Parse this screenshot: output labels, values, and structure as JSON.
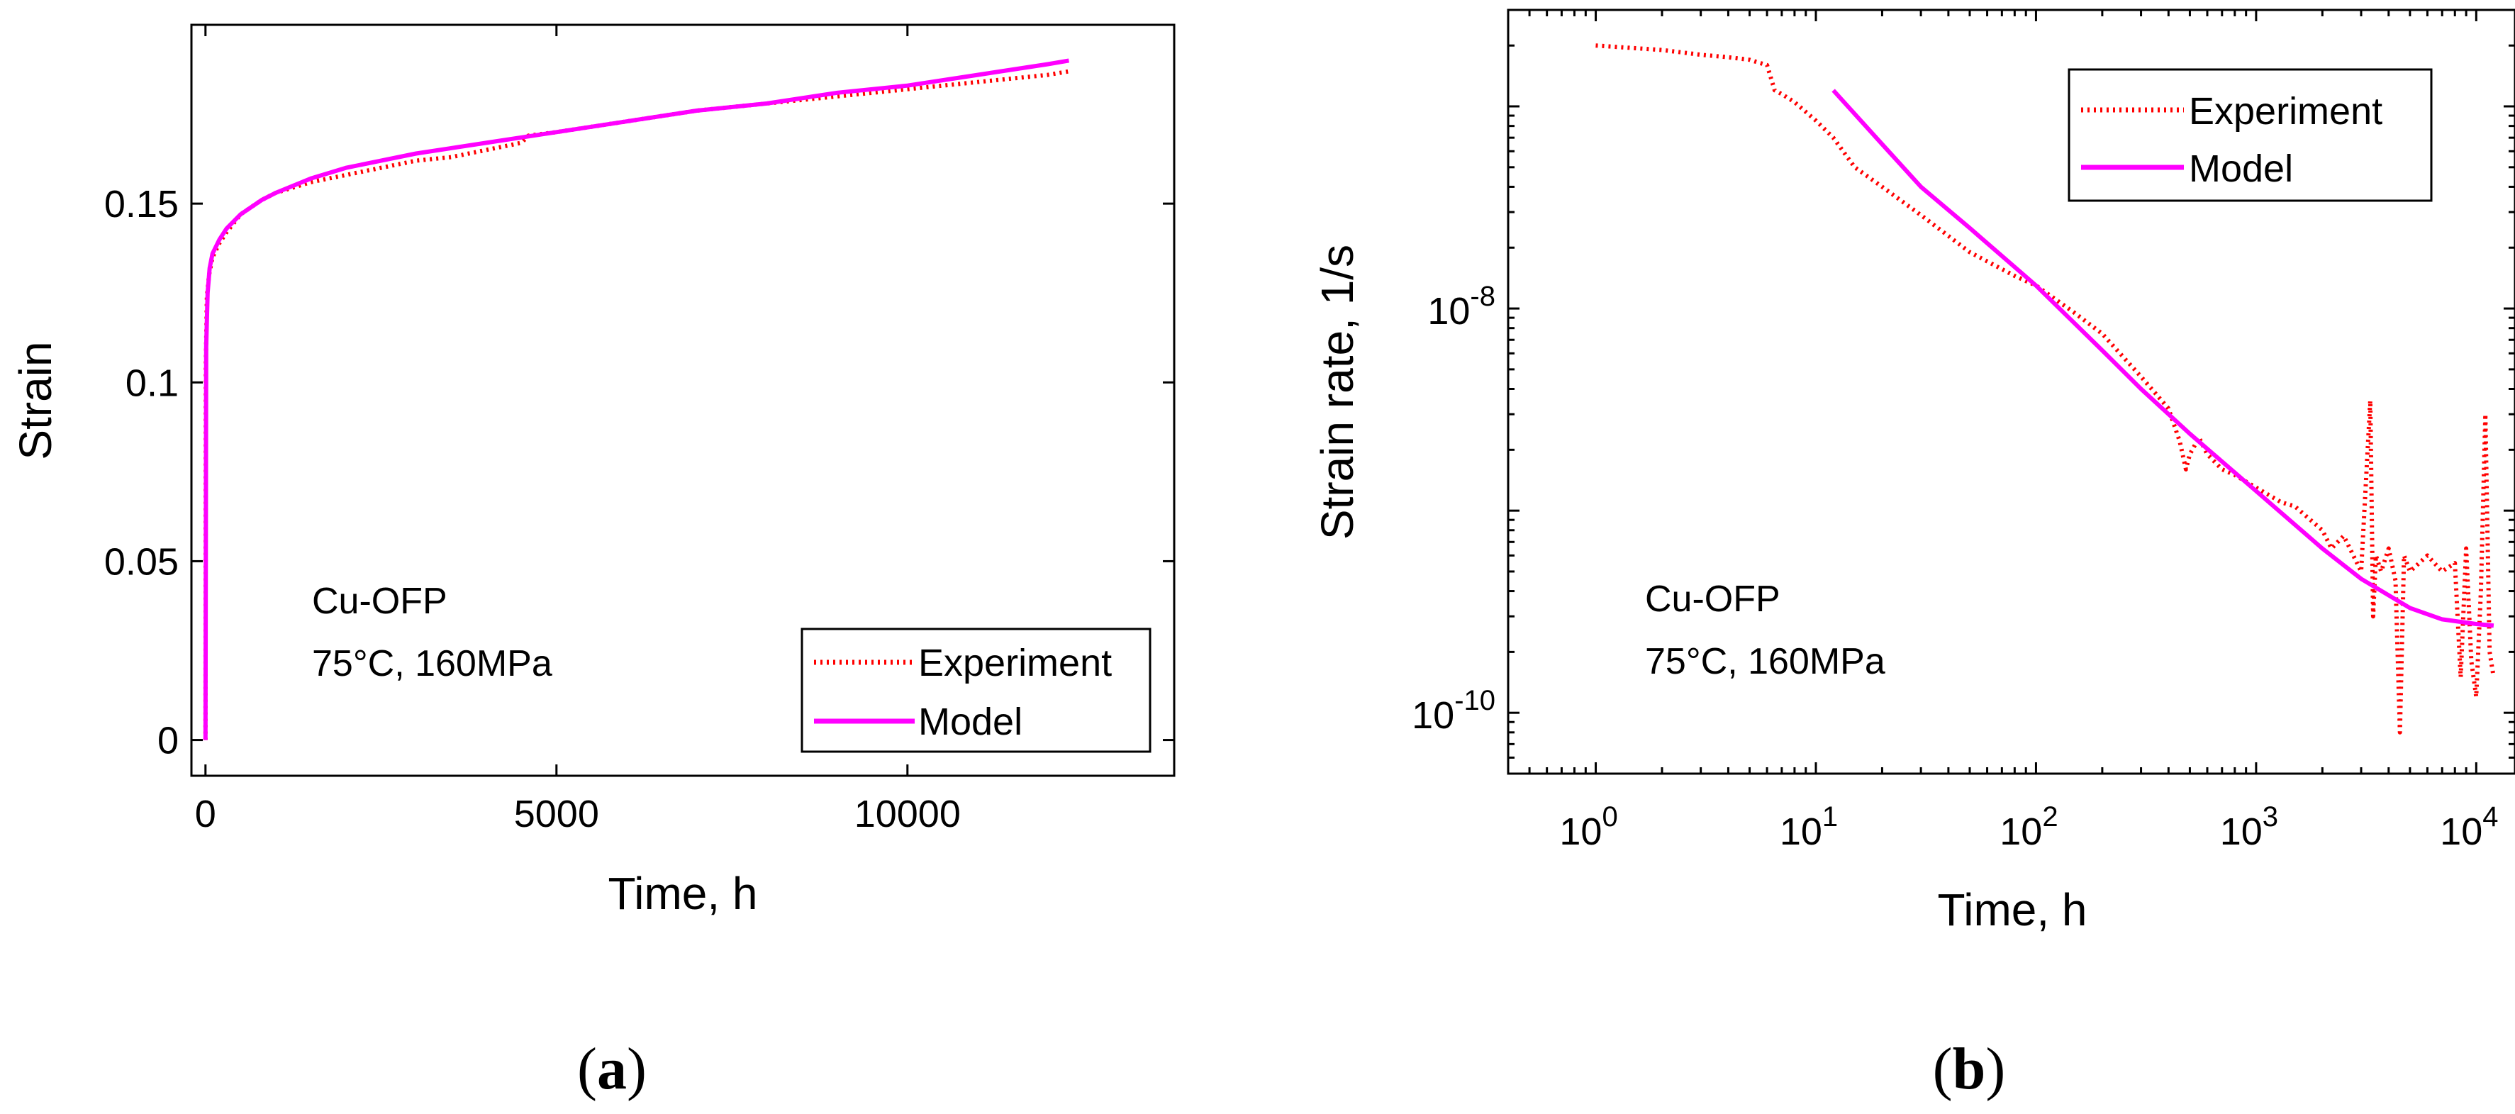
{
  "chart_data": [
    {
      "panel": "(a)",
      "type": "line",
      "xlabel": "Time, h",
      "ylabel": "Strain",
      "xlim": [
        -200,
        13800
      ],
      "ylim": [
        -0.01,
        0.2
      ],
      "xticks": [
        0,
        5000,
        10000
      ],
      "xtick_labels": [
        "0",
        "5000",
        "10000"
      ],
      "yticks": [
        0,
        0.05,
        0.1,
        0.15
      ],
      "ytick_labels": [
        "0",
        "0.05",
        "0.1",
        "0.15"
      ],
      "grid": false,
      "legend_position": "bottom-right",
      "annotations": [
        "Cu-OFP",
        "75°C, 160MPa"
      ],
      "series": [
        {
          "name": "Experiment",
          "color": "#ff0000",
          "style": "dotted",
          "x": [
            0,
            5,
            20,
            50,
            100,
            200,
            300,
            500,
            800,
            1000,
            1500,
            2000,
            2500,
            3000,
            3500,
            4000,
            4500,
            4600,
            5000,
            6000,
            7000,
            8000,
            9000,
            10000,
            11000,
            12000,
            12300
          ],
          "y": [
            0.0,
            0.105,
            0.124,
            0.13,
            0.135,
            0.139,
            0.142,
            0.147,
            0.151,
            0.153,
            0.156,
            0.158,
            0.16,
            0.162,
            0.163,
            0.165,
            0.167,
            0.169,
            0.17,
            0.173,
            0.176,
            0.178,
            0.18,
            0.182,
            0.184,
            0.186,
            0.187
          ]
        },
        {
          "name": "Model",
          "color": "#ff00ff",
          "style": "solid",
          "x": [
            0,
            10,
            30,
            60,
            100,
            200,
            300,
            500,
            800,
            1000,
            1500,
            2000,
            3000,
            4000,
            5000,
            6000,
            7000,
            8000,
            9000,
            10000,
            11000,
            12000,
            12300
          ],
          "y": [
            0.0,
            0.11,
            0.125,
            0.132,
            0.136,
            0.14,
            0.143,
            0.147,
            0.151,
            0.153,
            0.157,
            0.16,
            0.164,
            0.167,
            0.17,
            0.173,
            0.176,
            0.178,
            0.181,
            0.183,
            0.186,
            0.189,
            0.19
          ]
        }
      ]
    },
    {
      "panel": "(b)",
      "type": "line",
      "xlabel": "Time, h",
      "ylabel": "Strain rate, 1/s",
      "xscale": "log",
      "yscale": "log",
      "xlim": [
        0.4,
        15000
      ],
      "ylim": [
        5e-11,
        3e-07
      ],
      "xticks": [
        1,
        10,
        100,
        1000,
        10000
      ],
      "xtick_bases": [
        "10",
        "10",
        "10",
        "10",
        "10"
      ],
      "xtick_exps": [
        "0",
        "1",
        "2",
        "3",
        "4"
      ],
      "yticks": [
        1e-08,
        1e-10
      ],
      "ytick_bases": [
        "10",
        "10"
      ],
      "ytick_exps": [
        "-8",
        "-10"
      ],
      "grid": false,
      "legend_position": "top-right",
      "annotations": [
        "Cu-OFP",
        "75°C, 160MPa"
      ],
      "series": [
        {
          "name": "Experiment",
          "color": "#ff0000",
          "style": "dotted",
          "x": [
            1,
            2,
            3,
            4,
            5,
            6,
            6.5,
            7,
            8,
            10,
            12,
            15,
            20,
            30,
            50,
            80,
            100,
            150,
            200,
            300,
            400,
            450,
            480,
            500,
            550,
            600,
            700,
            800,
            1000,
            1300,
            1500,
            2000,
            2200,
            2500,
            3000,
            3300,
            3400,
            3500,
            3700,
            4000,
            4300,
            4500,
            4700,
            5000,
            6000,
            7000,
            8000,
            8500,
            9000,
            9500,
            10000,
            10500,
            11000,
            11500,
            12000
          ],
          "y": [
            2e-07,
            1.9e-07,
            1.8e-07,
            1.75e-07,
            1.7e-07,
            1.6e-07,
            1.2e-07,
            1.15e-07,
            1.05e-07,
            8.5e-08,
            7e-08,
            5e-08,
            4e-08,
            2.9e-08,
            1.9e-08,
            1.45e-08,
            1.3e-08,
            9.5e-09,
            7.5e-09,
            4.6e-09,
            3.2e-09,
            2.2e-09,
            1.6e-09,
            1.9e-09,
            2.3e-09,
            1.9e-09,
            1.6e-09,
            1.5e-09,
            1.3e-09,
            1.1e-09,
            1.05e-09,
            8e-10,
            6.5e-10,
            7.5e-10,
            5e-10,
            3.5e-09,
            3e-10,
            6e-10,
            5e-10,
            6.5e-10,
            4.5e-10,
            8e-11,
            6e-10,
            5e-10,
            6e-10,
            5e-10,
            5.5e-10,
            1.5e-10,
            6.5e-10,
            1.8e-10,
            1.2e-10,
            4e-10,
            3e-09,
            2e-10,
            1.5e-10
          ]
        },
        {
          "name": "Model",
          "color": "#ff00ff",
          "style": "solid",
          "x": [
            12,
            20,
            30,
            50,
            100,
            200,
            300,
            500,
            1000,
            2000,
            3000,
            5000,
            7000,
            10000,
            12000
          ],
          "y": [
            1.2e-07,
            6.5e-08,
            4e-08,
            2.5e-08,
            1.3e-08,
            6.2e-09,
            4e-09,
            2.4e-09,
            1.25e-09,
            6.5e-10,
            4.6e-10,
            3.3e-10,
            2.9e-10,
            2.75e-10,
            2.7e-10
          ]
        }
      ]
    }
  ],
  "panel_labels": {
    "a": {
      "open": "(",
      "letter": "a",
      "close": ")"
    },
    "b": {
      "open": "(",
      "letter": "b",
      "close": ")"
    }
  }
}
